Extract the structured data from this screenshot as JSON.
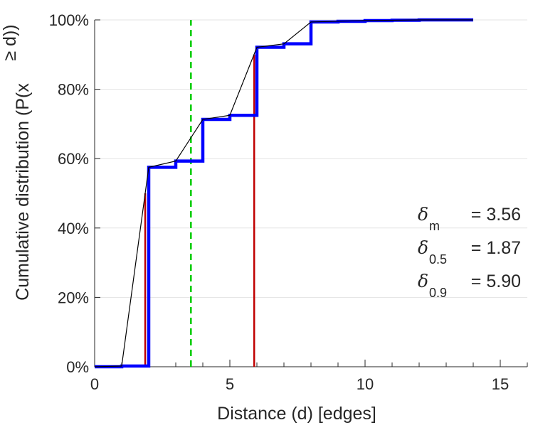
{
  "chart_data": {
    "type": "line",
    "xlabel": "Distance (d) [edges]",
    "ylabel": "Cumulative distribution (P(x",
    "ylabel_cont": "≥ d))",
    "xlim": [
      0,
      16
    ],
    "ylim": [
      0,
      100
    ],
    "y_unit": "%",
    "x_ticks": [
      0,
      5,
      10,
      15
    ],
    "y_ticks": [
      0,
      20,
      40,
      60,
      80,
      100
    ],
    "y_tick_labels": [
      "0%",
      "20%",
      "40%",
      "60%",
      "80%",
      "100%"
    ],
    "grid": "horizontal",
    "series": [
      {
        "style": "step",
        "color": "#0000ff",
        "x": [
          0,
          1,
          2,
          3,
          4,
          5,
          6,
          7,
          8,
          9,
          10,
          11,
          12,
          13,
          14
        ],
        "y": [
          0,
          0.2,
          57.5,
          59.3,
          71.3,
          72.5,
          92.1,
          93.1,
          99.4,
          99.6,
          99.8,
          99.9,
          100,
          100,
          100
        ]
      },
      {
        "style": "line",
        "color": "#000000",
        "x": [
          0,
          1,
          2,
          3,
          4,
          5,
          6,
          7,
          8,
          9,
          10,
          11,
          12,
          13,
          14
        ],
        "y": [
          0,
          0.2,
          57.5,
          59.3,
          71.3,
          72.5,
          92.1,
          93.1,
          99.4,
          99.6,
          99.8,
          99.9,
          100,
          100,
          100
        ]
      }
    ],
    "vlines": [
      {
        "x": 1.87,
        "y": 50,
        "color": "#c00000",
        "style": "solid"
      },
      {
        "x": 5.9,
        "y": 90,
        "color": "#c00000",
        "style": "solid"
      },
      {
        "x": 3.56,
        "y": 100,
        "color": "#00cc00",
        "style": "dashed"
      }
    ],
    "annotations": [
      {
        "symbol": "δ",
        "sub": "m",
        "text": "= 3.56"
      },
      {
        "symbol": "δ",
        "sub": "0.5",
        "text": "= 1.87"
      },
      {
        "symbol": "δ",
        "sub": "0.9",
        "text": "= 5.90"
      }
    ]
  }
}
